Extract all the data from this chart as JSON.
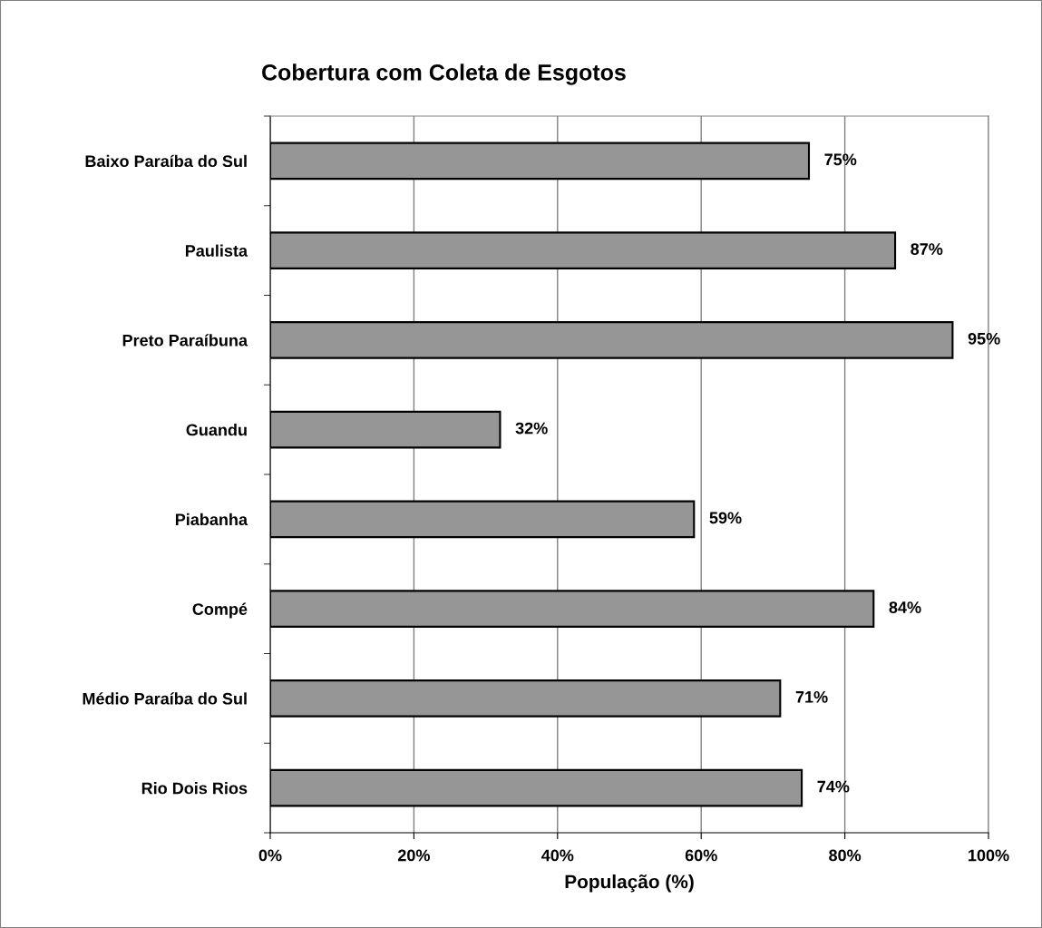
{
  "chart_data": {
    "type": "bar",
    "orientation": "horizontal",
    "title": "Cobertura com Coleta de Esgotos",
    "xlabel": "População (%)",
    "categories": [
      "Baixo Paraíba do Sul",
      "Paulista",
      "Preto Paraíbuna",
      "Guandu",
      "Piabanha",
      "Compé",
      "Médio Paraíba do Sul",
      "Rio Dois Rios"
    ],
    "values": [
      75,
      87,
      95,
      32,
      59,
      84,
      71,
      74
    ],
    "value_labels": [
      "75%",
      "87%",
      "95%",
      "32%",
      "59%",
      "84%",
      "71%",
      "74%"
    ],
    "color": "#969696",
    "xlim": [
      0,
      100
    ],
    "xticks": [
      {
        "value": 0,
        "label": "0%"
      },
      {
        "value": 20,
        "label": "20%"
      },
      {
        "value": 40,
        "label": "40%"
      },
      {
        "value": 60,
        "label": "60%"
      },
      {
        "value": 80,
        "label": "80%"
      },
      {
        "value": 100,
        "label": "100%"
      }
    ],
    "grid": "x",
    "legend": false
  }
}
